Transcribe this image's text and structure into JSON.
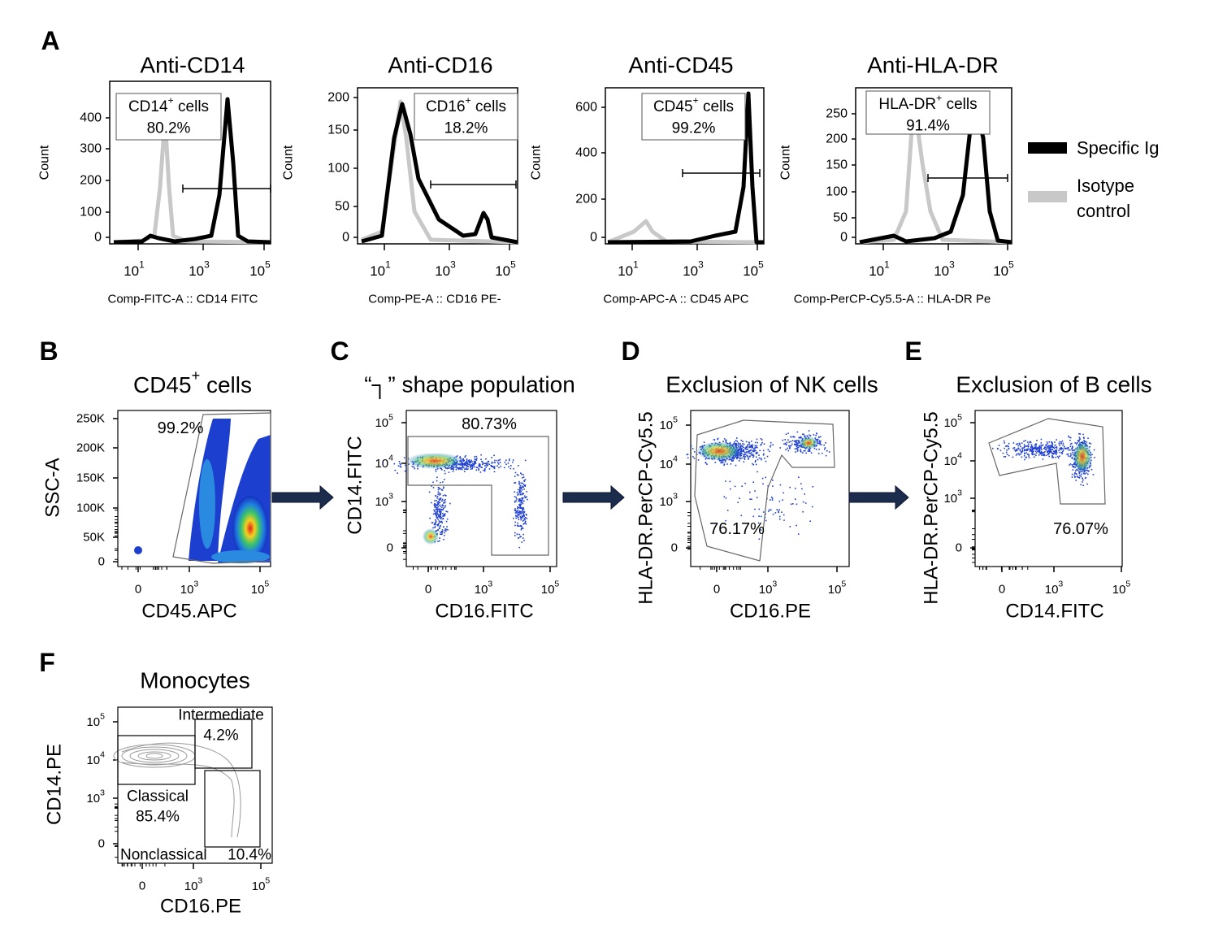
{
  "panel_a": {
    "letter": "A",
    "plots": [
      {
        "title": "Anti-CD14",
        "y_label": "Count",
        "x_label": "Comp-FITC-A :: CD14 FITC",
        "yticks": [
          "0",
          "100",
          "200",
          "300",
          "400"
        ],
        "xticks": [
          {
            "base": "10",
            "exp": "1"
          },
          {
            "base": "10",
            "exp": "3"
          },
          {
            "base": "10",
            "exp": "5"
          }
        ],
        "gate_label": {
          "text": "CD14",
          "sup": "+",
          "suffix": " cells"
        },
        "gate_percent": "80.2%"
      },
      {
        "title": "Anti-CD16",
        "y_label": "Count",
        "x_label": "Comp-PE-A :: CD16 PE-",
        "yticks": [
          "0",
          "50",
          "100",
          "150",
          "200"
        ],
        "xticks": [
          {
            "base": "10",
            "exp": "1"
          },
          {
            "base": "10",
            "exp": "3"
          },
          {
            "base": "10",
            "exp": "5"
          }
        ],
        "gate_label": {
          "text": "CD16",
          "sup": "+",
          "suffix": " cells"
        },
        "gate_percent": "18.2%"
      },
      {
        "title": "Anti-CD45",
        "y_label": "Count",
        "x_label": "Comp-APC-A :: CD45 APC",
        "yticks": [
          "0",
          "200",
          "400",
          "600"
        ],
        "xticks": [
          {
            "base": "10",
            "exp": "1"
          },
          {
            "base": "10",
            "exp": "3"
          },
          {
            "base": "10",
            "exp": "5"
          }
        ],
        "gate_label": {
          "text": "CD45",
          "sup": "+",
          "suffix": " cells"
        },
        "gate_percent": "99.2%"
      },
      {
        "title": "Anti-HLA-DR",
        "y_label": "Count",
        "x_label": "Comp-PerCP-Cy5.5-A :: HLA-DR Pe",
        "yticks": [
          "0",
          "50",
          "100",
          "150",
          "200",
          "250"
        ],
        "xticks": [
          {
            "base": "10",
            "exp": "1"
          },
          {
            "base": "10",
            "exp": "3"
          },
          {
            "base": "10",
            "exp": "5"
          }
        ],
        "gate_label": {
          "text": "HLA-DR",
          "sup": "+",
          "suffix": " cells"
        },
        "gate_percent": "91.4%"
      }
    ],
    "legend": [
      "Specific Ig",
      "Isotype control"
    ]
  },
  "panel_b": {
    "letter": "B",
    "title": {
      "text": "CD45",
      "sup": "+",
      "suffix": " cells"
    },
    "y_label": "SSC-A",
    "x_label": "CD45.APC",
    "yticks": [
      "250K",
      "200K",
      "150K",
      "100K",
      "50K",
      "0"
    ],
    "xticks": [
      "0",
      {
        "base": "10",
        "exp": "3"
      },
      {
        "base": "10",
        "exp": "5"
      }
    ],
    "gate_percent": "99.2%"
  },
  "panel_c": {
    "letter": "C",
    "title": "“┐” shape population",
    "y_label": "CD14.FITC",
    "x_label": "CD16.FITC",
    "yticks": [
      {
        "base": "10",
        "exp": "5"
      },
      {
        "base": "10",
        "exp": "4"
      },
      {
        "base": "10",
        "exp": "3"
      },
      "0"
    ],
    "xticks": [
      "0",
      {
        "base": "10",
        "exp": "3"
      },
      {
        "base": "10",
        "exp": "5"
      }
    ],
    "gate_percent": "80.73%"
  },
  "panel_d": {
    "letter": "D",
    "title": "Exclusion of NK cells",
    "y_label": "HLA-DR.PerCP-Cy5.5",
    "x_label": "CD16.PE",
    "yticks": [
      {
        "base": "10",
        "exp": "5"
      },
      {
        "base": "10",
        "exp": "4"
      },
      {
        "base": "10",
        "exp": "3"
      },
      "0"
    ],
    "xticks": [
      "0",
      {
        "base": "10",
        "exp": "3"
      },
      {
        "base": "10",
        "exp": "5"
      }
    ],
    "gate_percent": "76.17%"
  },
  "panel_e": {
    "letter": "E",
    "title": "Exclusion of B cells",
    "y_label": "HLA-DR.PerCP-Cy5.5",
    "x_label": "CD14.FITC",
    "yticks": [
      {
        "base": "10",
        "exp": "5"
      },
      {
        "base": "10",
        "exp": "4"
      },
      {
        "base": "10",
        "exp": "3"
      },
      "0"
    ],
    "xticks": [
      "0",
      {
        "base": "10",
        "exp": "3"
      },
      {
        "base": "10",
        "exp": "5"
      }
    ],
    "gate_percent": "76.07%"
  },
  "panel_f": {
    "letter": "F",
    "title": "Monocytes",
    "y_label": "CD14.PE",
    "x_label": "CD16.PE",
    "yticks": [
      {
        "base": "10",
        "exp": "5"
      },
      {
        "base": "10",
        "exp": "4"
      },
      {
        "base": "10",
        "exp": "3"
      },
      "0"
    ],
    "xticks": [
      "0",
      {
        "base": "10",
        "exp": "3"
      },
      {
        "base": "10",
        "exp": "5"
      }
    ],
    "gates": [
      {
        "name": "Intermediate",
        "percent": "4.2%"
      },
      {
        "name": "Classical",
        "percent": "85.4%"
      },
      {
        "name": "Nonclassical",
        "percent": "10.4%"
      }
    ]
  }
}
